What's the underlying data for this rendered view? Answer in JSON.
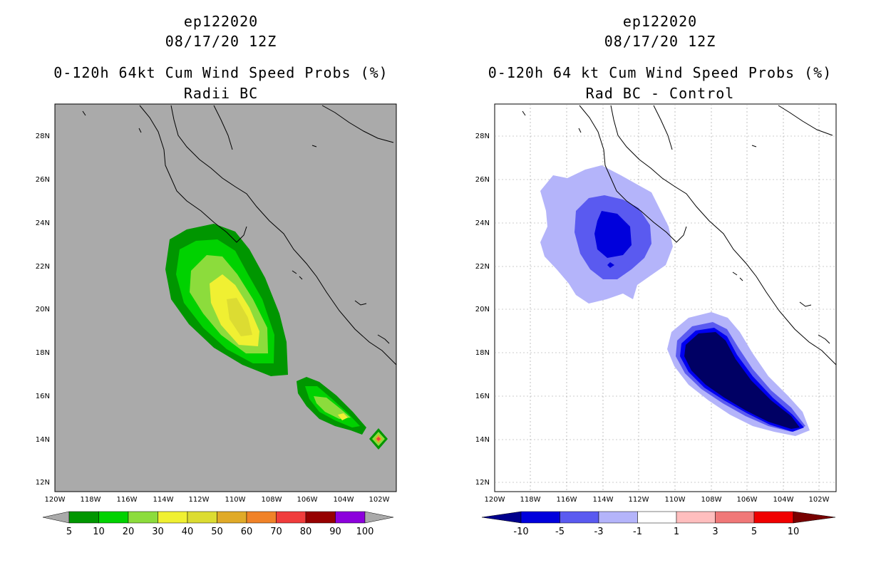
{
  "left": {
    "title_line1": "ep122020",
    "title_line2": "08/17/20 12Z",
    "title_line3": "0-120h 64kt Cum Wind Speed Probs (%)",
    "title_line4": "Radii BC",
    "lat_labels": [
      "28N",
      "26N",
      "24N",
      "22N",
      "20N",
      "18N",
      "16N",
      "14N",
      "12N"
    ],
    "lon_labels": [
      "120W",
      "118W",
      "116W",
      "114W",
      "112W",
      "110W",
      "108W",
      "106W",
      "104W",
      "102W"
    ],
    "colorbar_labels": [
      "5",
      "10",
      "20",
      "30",
      "40",
      "50",
      "60",
      "70",
      "80",
      "90",
      "100"
    ],
    "colorbar_colors": [
      "#009600",
      "#00d200",
      "#8cdc3c",
      "#f0f032",
      "#dcdc32",
      "#e0aa28",
      "#f08228",
      "#f03c3c",
      "#960000",
      "#8c00dc"
    ],
    "background_color": "#aaaaaa"
  },
  "right": {
    "title_line1": "ep122020",
    "title_line2": "08/17/20 12Z",
    "title_line3": "0-120h 64 kt Cum Wind Speed Probs (%)",
    "title_line4": "Rad BC - Control",
    "lat_labels": [
      "28N",
      "26N",
      "24N",
      "22N",
      "20N",
      "18N",
      "16N",
      "14N",
      "12N"
    ],
    "lon_labels": [
      "120W",
      "118W",
      "116W",
      "114W",
      "112W",
      "110W",
      "108W",
      "106W",
      "104W",
      "102W"
    ],
    "colorbar_labels": [
      "-10",
      "-5",
      "-3",
      "-1",
      "1",
      "3",
      "5",
      "10"
    ],
    "colorbar_colors": [
      "#0000dc",
      "#5a5af0",
      "#b4b4fa",
      "#ffffff",
      "#ffbebe",
      "#f07878",
      "#f00000"
    ]
  }
}
